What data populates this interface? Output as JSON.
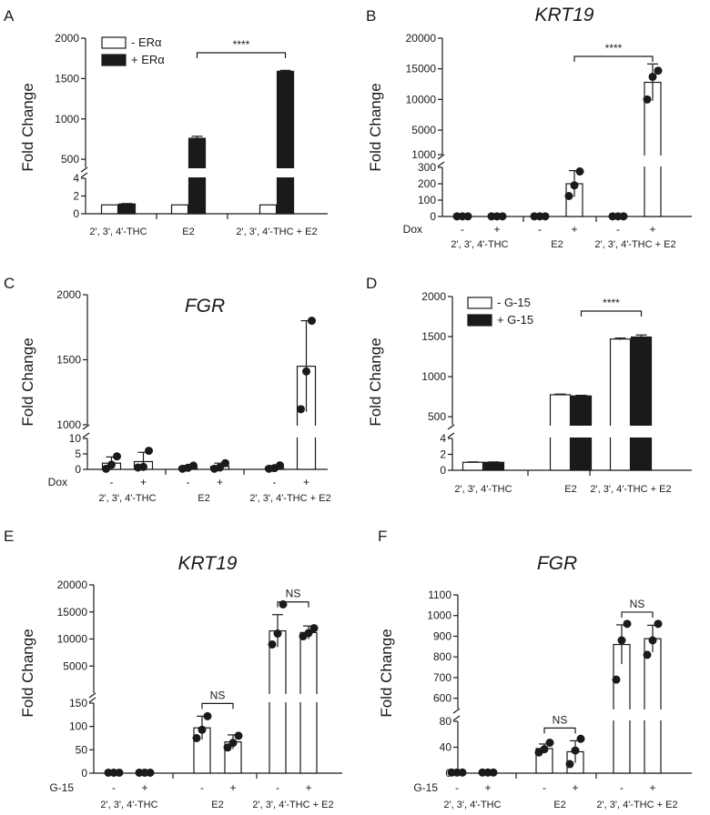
{
  "chart_data": [
    {
      "panel": "A",
      "type": "bar",
      "title": "",
      "ylabel": "Fold Change",
      "categories": [
        "2', 3', 4'-THC",
        "E2",
        "2', 3', 4'-THC + E2"
      ],
      "series": [
        {
          "name": "-  ERα",
          "style": "open",
          "values": [
            1,
            1,
            1
          ],
          "errors": [
            0,
            0,
            0
          ]
        },
        {
          "name": "+ ERα",
          "style": "filled",
          "values": [
            1.1,
            760,
            1590
          ],
          "errors": [
            0.05,
            25,
            12
          ]
        }
      ],
      "y_segments": [
        {
          "range": [
            0,
            4
          ],
          "ticks": [
            "0",
            "2",
            "4"
          ]
        },
        {
          "range": [
            400,
            2000
          ],
          "ticks": [
            "500",
            "1000",
            "1500",
            "2000"
          ]
        }
      ],
      "comparisons": [
        {
          "from": [
            1,
            1
          ],
          "to": [
            2,
            1
          ],
          "label": "****"
        }
      ],
      "legend": "top-left"
    },
    {
      "panel": "B",
      "type": "bar",
      "title": "KRT19",
      "ylabel": "Fold Change",
      "categories": [
        "2', 3', 4'-THC",
        "E2",
        "2', 3', 4'-THC + E2"
      ],
      "row_label": "Dox",
      "row_signs": [
        "-",
        "+",
        "-",
        "+",
        "-",
        "+"
      ],
      "series": [
        {
          "name": "-",
          "style": "open",
          "values": [
            1,
            1,
            1
          ],
          "errors": [
            0,
            0,
            0
          ],
          "points": [
            [
              1,
              1,
              1
            ],
            [
              1,
              1,
              1
            ],
            [
              1,
              1,
              1
            ]
          ]
        },
        {
          "name": "+",
          "style": "open",
          "values": [
            1,
            200,
            12800
          ],
          "errors": [
            0,
            80,
            3000
          ],
          "points": [
            [
              1,
              1,
              1
            ],
            [
              125,
              190,
              275
            ],
            [
              10000,
              13700,
              14700
            ]
          ]
        }
      ],
      "y_segments": [
        {
          "range": [
            0,
            300
          ],
          "ticks": [
            "0",
            "100",
            "200",
            "300"
          ]
        },
        {
          "range": [
            1000,
            20000
          ],
          "ticks": [
            "1000",
            "5000",
            "10000",
            "15000",
            "20000"
          ]
        }
      ],
      "comparisons": [
        {
          "from": [
            1,
            1
          ],
          "to": [
            2,
            1
          ],
          "label": "****"
        }
      ]
    },
    {
      "panel": "C",
      "type": "bar",
      "title": "FGR",
      "ylabel": "Fold Change",
      "categories": [
        "2', 3', 4'-THC",
        "E2",
        "2', 3', 4'-THC + E2"
      ],
      "row_label": "Dox",
      "row_signs": [
        "-",
        "+",
        "-",
        "+",
        "-",
        "+"
      ],
      "series": [
        {
          "name": "-",
          "style": "open",
          "values": [
            2,
            0.7,
            0.7
          ],
          "errors": [
            2,
            0.5,
            0.5
          ],
          "points": [
            [
              0.2,
              1.5,
              4.2
            ],
            [
              0.2,
              0.5,
              1.2
            ],
            [
              0.2,
              0.4,
              1.3
            ]
          ]
        },
        {
          "name": "+",
          "style": "open",
          "values": [
            2.5,
            1,
            1450
          ],
          "errors": [
            3,
            1,
            350
          ],
          "points": [
            [
              0.6,
              0.8,
              6
            ],
            [
              0.2,
              0.6,
              2
            ],
            [
              1120,
              1410,
              1800
            ]
          ]
        }
      ],
      "y_segments": [
        {
          "range": [
            0,
            10
          ],
          "ticks": [
            "0",
            "5",
            "10"
          ]
        },
        {
          "range": [
            1000,
            2000
          ],
          "ticks": [
            "1000",
            "1500",
            "2000"
          ]
        }
      ]
    },
    {
      "panel": "D",
      "type": "bar",
      "title": "",
      "ylabel": "Fold Change",
      "categories": [
        "2', 3', 4'-THC",
        "E2",
        "2', 3', 4'-THC + E2"
      ],
      "series": [
        {
          "name": "-  G-15",
          "style": "open",
          "values": [
            1,
            775,
            1470
          ],
          "errors": [
            0.05,
            8,
            12
          ],
          "points": [
            [],
            [],
            []
          ]
        },
        {
          "name": "+ G-15",
          "style": "filled",
          "values": [
            1,
            760,
            1495
          ],
          "errors": [
            0.05,
            8,
            25
          ],
          "points": [
            [],
            [],
            []
          ]
        }
      ],
      "y_segments": [
        {
          "range": [
            0,
            4
          ],
          "ticks": [
            "0",
            "2",
            "4"
          ]
        },
        {
          "range": [
            400,
            2000
          ],
          "ticks": [
            "500",
            "1000",
            "1500",
            "2000"
          ]
        }
      ],
      "comparisons": [
        {
          "from": [
            1,
            1
          ],
          "to": [
            2,
            1
          ],
          "label": "****"
        }
      ],
      "legend": "top-left"
    },
    {
      "panel": "E",
      "type": "bar",
      "title": "KRT19",
      "ylabel": "Fold Change",
      "categories": [
        "2', 3', 4'-THC",
        "E2",
        "2', 3', 4'-THC + E2"
      ],
      "row_label": "G-15",
      "row_signs": [
        "-",
        "+",
        "-",
        "+",
        "-",
        "+"
      ],
      "series": [
        {
          "name": "-",
          "style": "open",
          "values": [
            1,
            97,
            11500
          ],
          "errors": [
            0,
            25,
            3000
          ],
          "points": [
            [
              1,
              1,
              1
            ],
            [
              75,
              93,
              122
            ],
            [
              9000,
              11000,
              16400
            ]
          ]
        },
        {
          "name": "+",
          "style": "open",
          "values": [
            1,
            67,
            11200
          ],
          "errors": [
            0,
            15,
            1200
          ],
          "points": [
            [
              1,
              1,
              1
            ],
            [
              55,
              65,
              80
            ],
            [
              10500,
              11100,
              12000
            ]
          ]
        }
      ],
      "y_segments": [
        {
          "range": [
            0,
            150
          ],
          "ticks": [
            "0",
            "50",
            "100",
            "150"
          ]
        },
        {
          "range": [
            0,
            20000
          ],
          "ticks": [
            "5000",
            "10000",
            "15000",
            "20000"
          ]
        }
      ],
      "comparisons": [
        {
          "from": [
            1,
            0
          ],
          "to": [
            1,
            1
          ],
          "label": "NS"
        },
        {
          "from": [
            2,
            0
          ],
          "to": [
            2,
            1
          ],
          "label": "NS"
        }
      ]
    },
    {
      "panel": "F",
      "type": "bar",
      "title": "FGR",
      "ylabel": "Fold Change",
      "categories": [
        "2', 3', 4'-THC",
        "E2",
        "2', 3', 4'-THC + E2"
      ],
      "row_label": "G-15",
      "row_signs": [
        "-",
        "+",
        "-",
        "+",
        "-",
        "+"
      ],
      "series": [
        {
          "name": "-",
          "style": "open",
          "values": [
            1,
            38,
            860
          ],
          "errors": [
            0,
            7,
            95
          ],
          "points": [
            [
              1,
              1,
              1
            ],
            [
              32,
              37,
              47
            ],
            [
              690,
              880,
              960
            ]
          ]
        },
        {
          "name": "+",
          "style": "open",
          "values": [
            1,
            33,
            888
          ],
          "errors": [
            0,
            17,
            65
          ],
          "points": [
            [
              1,
              1,
              1
            ],
            [
              14,
              35,
              53
            ],
            [
              810,
              880,
              960
            ]
          ]
        }
      ],
      "y_segments": [
        {
          "range": [
            0,
            80
          ],
          "ticks": [
            "0",
            "40",
            "80"
          ]
        },
        {
          "range": [
            550,
            1100
          ],
          "ticks": [
            "600",
            "700",
            "800",
            "900",
            "1000",
            "1100"
          ]
        }
      ],
      "comparisons": [
        {
          "from": [
            1,
            0
          ],
          "to": [
            1,
            1
          ],
          "label": "NS"
        },
        {
          "from": [
            2,
            0
          ],
          "to": [
            2,
            1
          ],
          "label": "NS"
        }
      ]
    }
  ]
}
